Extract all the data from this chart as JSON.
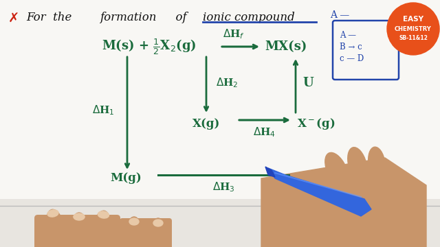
{
  "bg_color": "#f0eeeb",
  "whiteboard_color": "#f5f4f0",
  "green": "#1a6b3c",
  "blue": "#2244aa",
  "red": "#cc2211",
  "orange_circle": "#e8501a",
  "title_x": "✗",
  "title_rest": "For the  formation  of  ionic compound",
  "underline_word": "ionic compound",
  "eq_left": "M(s) + ½X₂(g)",
  "eq_right": "MX(s)",
  "dHf": "ΔHₑ",
  "dH1": "ΔH₁",
  "dH2": "ΔH₂",
  "dH3": "ΔH₃",
  "dH4": "ΔH₄",
  "U": "U",
  "Mg": "M(g)",
  "Xg": "X(g)",
  "Xmg": "X⁻(g)",
  "easy1": "EASY",
  "easy2": "CHEMISTRY",
  "easy3": "SB-11&12",
  "box_lines": [
    "A —",
    "B → c",
    "c — D"
  ],
  "hand_color": "#c8956a",
  "skin_color": "#c8956a"
}
